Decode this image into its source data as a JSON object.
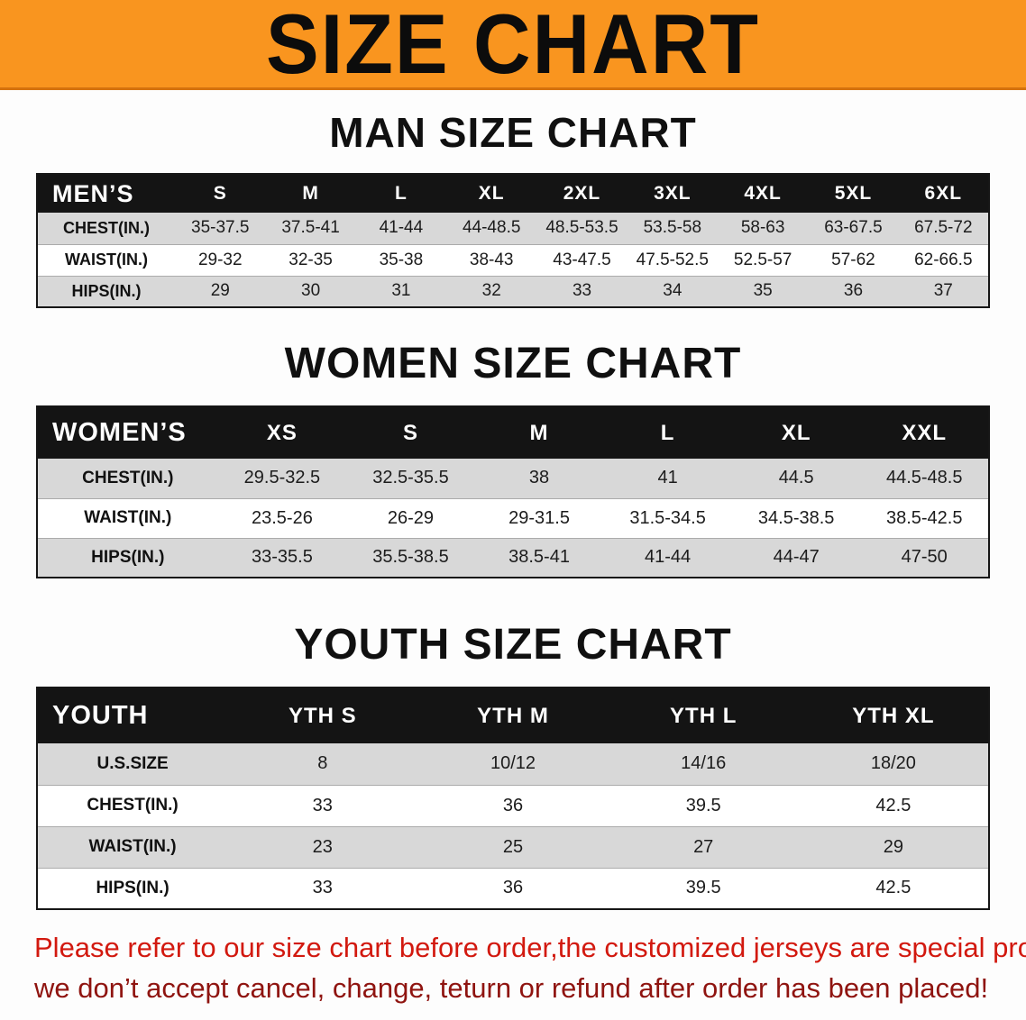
{
  "banner": {
    "title": "SIZE CHART"
  },
  "colors": {
    "banner_bg": "#f6881f",
    "header_bg": "#141414",
    "row_alt": "#d8d8d8",
    "footer_red": "#d2190f",
    "footer_red_dark": "#8f1410"
  },
  "sections": [
    {
      "id": "men",
      "heading": "MAN SIZE CHART",
      "table": {
        "label": "MEN’S",
        "columns": [
          "S",
          "M",
          "L",
          "XL",
          "2XL",
          "3XL",
          "4XL",
          "5XL",
          "6XL"
        ],
        "rows": [
          {
            "label": "CHEST(IN.)",
            "values": [
              "35-37.5",
              "37.5-41",
              "41-44",
              "44-48.5",
              "48.5-53.5",
              "53.5-58",
              "58-63",
              "63-67.5",
              "67.5-72"
            ]
          },
          {
            "label": "WAIST(IN.)",
            "values": [
              "29-32",
              "32-35",
              "35-38",
              "38-43",
              "43-47.5",
              "47.5-52.5",
              "52.5-57",
              "57-62",
              "62-66.5"
            ]
          },
          {
            "label": "HIPS(IN.)",
            "values": [
              "29",
              "30",
              "31",
              "32",
              "33",
              "34",
              "35",
              "36",
              "37"
            ]
          }
        ]
      }
    },
    {
      "id": "women",
      "heading": "WOMEN SIZE CHART",
      "table": {
        "label": "WOMEN’S",
        "columns": [
          "XS",
          "S",
          "M",
          "L",
          "XL",
          "XXL"
        ],
        "rows": [
          {
            "label": "CHEST(IN.)",
            "values": [
              "29.5-32.5",
              "32.5-35.5",
              "38",
              "41",
              "44.5",
              "44.5-48.5"
            ]
          },
          {
            "label": "WAIST(IN.)",
            "values": [
              "23.5-26",
              "26-29",
              "29-31.5",
              "31.5-34.5",
              "34.5-38.5",
              "38.5-42.5"
            ]
          },
          {
            "label": "HIPS(IN.)",
            "values": [
              "33-35.5",
              "35.5-38.5",
              "38.5-41",
              "41-44",
              "44-47",
              "47-50"
            ]
          }
        ]
      }
    },
    {
      "id": "youth",
      "heading": "YOUTH SIZE CHART",
      "table": {
        "label": "YOUTH",
        "columns": [
          "YTH S",
          "YTH M",
          "YTH L",
          "YTH XL"
        ],
        "rows": [
          {
            "label": "U.S.SIZE",
            "values": [
              "8",
              "10/12",
              "14/16",
              "18/20"
            ]
          },
          {
            "label": "CHEST(IN.)",
            "values": [
              "33",
              "36",
              "39.5",
              "42.5"
            ]
          },
          {
            "label": "WAIST(IN.)",
            "values": [
              "23",
              "25",
              "27",
              "29"
            ]
          },
          {
            "label": "HIPS(IN.)",
            "values": [
              "33",
              "36",
              "39.5",
              "42.5"
            ]
          }
        ]
      }
    }
  ],
  "footer": {
    "line1": "Please refer to our size chart before order,the customized jerseys are special products,",
    "line2": "we don’t accept cancel, change, teturn or refund after order has been placed!"
  }
}
